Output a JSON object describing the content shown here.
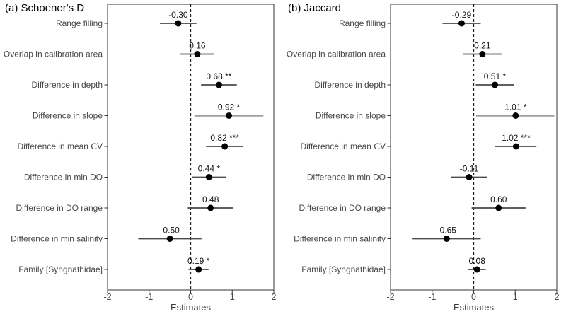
{
  "figure": {
    "background": "#ffffff",
    "panel_border_color": "#333333",
    "zero_line_color": "#1a1a1a",
    "point_color": "#000000",
    "ci_color_default": "#4a4a4a",
    "ci_color_wide": "#9e9e9e",
    "label_color": "#474747",
    "estimate_label_color": "#141414"
  },
  "chart_data": [
    {
      "type": "scatter",
      "variant": "forest-coefficient-plot",
      "panel_label": "(a) Schoener's D",
      "xlabel": "Estimates",
      "xlim": [
        -2,
        2
      ],
      "xticks": [
        -2,
        -1,
        0,
        1,
        2
      ],
      "grid": false,
      "legend": "none",
      "zero_line": {
        "x": 0,
        "style": "dashed"
      },
      "categories": [
        "Range filling",
        "Overlap in calibration area",
        "Difference in depth",
        "Difference in slope",
        "Difference in mean CV",
        "Difference in min DO",
        "Difference in DO range",
        "Difference in min salinity",
        "Family [Syngnathidae]"
      ],
      "points": [
        {
          "category": "Range filling",
          "estimate": -0.3,
          "label": "-0.30",
          "stars": "",
          "ci": [
            -0.74,
            0.14
          ]
        },
        {
          "category": "Overlap in calibration area",
          "estimate": 0.16,
          "label": "0.16",
          "stars": "",
          "ci": [
            -0.25,
            0.57
          ]
        },
        {
          "category": "Difference in depth",
          "estimate": 0.68,
          "label": "0.68 **",
          "stars": "**",
          "ci": [
            0.25,
            1.11
          ]
        },
        {
          "category": "Difference in slope",
          "estimate": 0.92,
          "label": "0.92 *",
          "stars": "*",
          "ci": [
            0.09,
            1.75
          ],
          "wide": true
        },
        {
          "category": "Difference in mean CV",
          "estimate": 0.82,
          "label": "0.82 ***",
          "stars": "***",
          "ci": [
            0.37,
            1.27
          ]
        },
        {
          "category": "Difference in min DO",
          "estimate": 0.44,
          "label": "0.44 *",
          "stars": "*",
          "ci": [
            0.03,
            0.85
          ]
        },
        {
          "category": "Difference in DO range",
          "estimate": 0.48,
          "label": "0.48",
          "stars": "",
          "ci": [
            -0.07,
            1.03
          ]
        },
        {
          "category": "Difference in min salinity",
          "estimate": -0.5,
          "label": "-0.50",
          "stars": "",
          "ci": [
            -1.26,
            0.26
          ]
        },
        {
          "category": "Family [Syngnathidae]",
          "estimate": 0.19,
          "label": "0.19 *",
          "stars": "*",
          "ci": [
            -0.05,
            0.43
          ]
        }
      ]
    },
    {
      "type": "scatter",
      "variant": "forest-coefficient-plot",
      "panel_label": "(b) Jaccard",
      "xlabel": "Estimates",
      "xlim": [
        -2,
        2
      ],
      "xticks": [
        -2,
        -1,
        0,
        1,
        2
      ],
      "grid": false,
      "legend": "none",
      "zero_line": {
        "x": 0,
        "style": "dashed"
      },
      "categories": [
        "Range filling",
        "Overlap in calibration area",
        "Difference in depth",
        "Difference in slope",
        "Difference in mean CV",
        "Difference in min DO",
        "Difference in DO range",
        "Difference in min salinity",
        "Family [Syngnathidae]"
      ],
      "points": [
        {
          "category": "Range filling",
          "estimate": -0.29,
          "label": "-0.29",
          "stars": "",
          "ci": [
            -0.75,
            0.17
          ]
        },
        {
          "category": "Overlap in calibration area",
          "estimate": 0.21,
          "label": "0.21",
          "stars": "",
          "ci": [
            -0.25,
            0.67
          ]
        },
        {
          "category": "Difference in depth",
          "estimate": 0.51,
          "label": "0.51 *",
          "stars": "*",
          "ci": [
            0.05,
            0.97
          ]
        },
        {
          "category": "Difference in slope",
          "estimate": 1.01,
          "label": "1.01 *",
          "stars": "*",
          "ci": [
            0.06,
            1.94
          ],
          "wide": true
        },
        {
          "category": "Difference in mean CV",
          "estimate": 1.02,
          "label": "1.02 ***",
          "stars": "***",
          "ci": [
            0.51,
            1.51
          ]
        },
        {
          "category": "Difference in min DO",
          "estimate": -0.11,
          "label": "-0.11",
          "stars": "",
          "ci": [
            -0.55,
            0.33
          ]
        },
        {
          "category": "Difference in DO range",
          "estimate": 0.6,
          "label": "0.60",
          "stars": "",
          "ci": [
            -0.05,
            1.25
          ]
        },
        {
          "category": "Difference in min salinity",
          "estimate": -0.65,
          "label": "-0.65",
          "stars": "",
          "ci": [
            -1.47,
            0.17
          ]
        },
        {
          "category": "Family [Syngnathidae]",
          "estimate": 0.08,
          "label": "0.08",
          "stars": "",
          "ci": [
            -0.13,
            0.29
          ]
        }
      ]
    }
  ]
}
